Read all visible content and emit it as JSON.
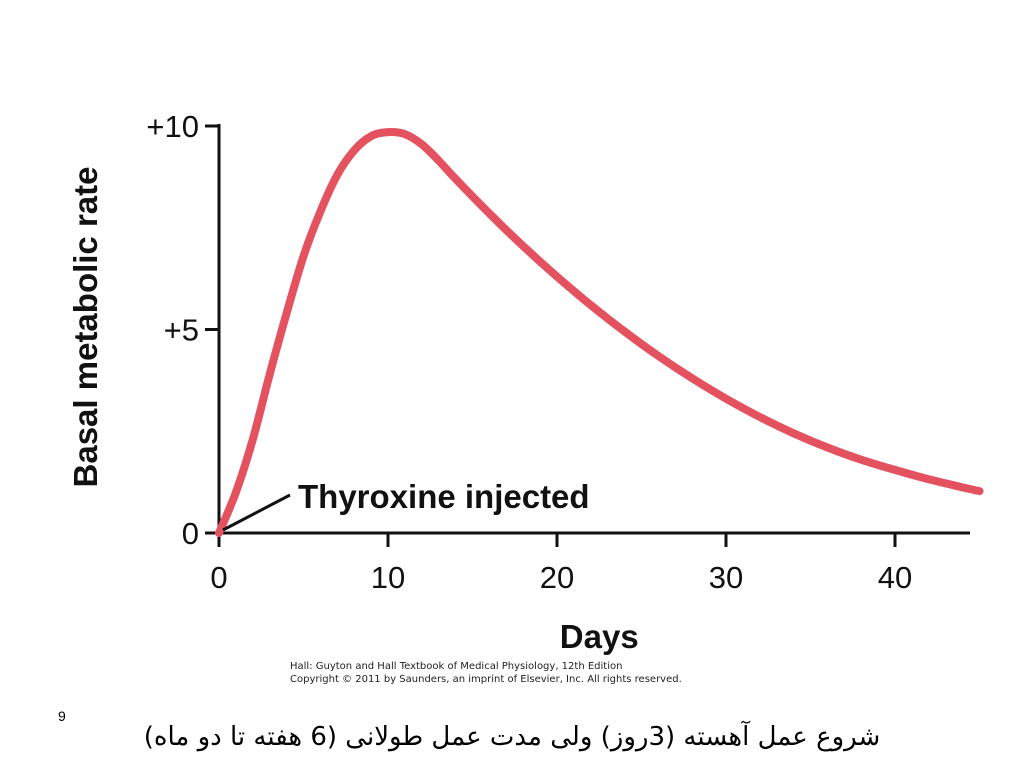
{
  "chart_data": {
    "type": "line",
    "xlabel": "Days",
    "ylabel": "Basal metabolic rate",
    "xlim": [
      0,
      45
    ],
    "ylim": [
      0,
      10
    ],
    "x_ticks": [
      0,
      10,
      20,
      30,
      40
    ],
    "x_tick_labels": [
      "0",
      "10",
      "20",
      "30",
      "40"
    ],
    "y_ticks": [
      0,
      5,
      10
    ],
    "y_tick_labels": [
      "0",
      "+5",
      "+10"
    ],
    "grid": false,
    "series": [
      {
        "color": "#e4525f",
        "points": [
          [
            0,
            0
          ],
          [
            1,
            1.0
          ],
          [
            2,
            2.3
          ],
          [
            3,
            3.9
          ],
          [
            4,
            5.4
          ],
          [
            5,
            6.8
          ],
          [
            6,
            7.9
          ],
          [
            7,
            8.8
          ],
          [
            8,
            9.4
          ],
          [
            9,
            9.75
          ],
          [
            10,
            9.85
          ],
          [
            11,
            9.8
          ],
          [
            12,
            9.55
          ],
          [
            13,
            9.15
          ],
          [
            14,
            8.7
          ],
          [
            16,
            7.85
          ],
          [
            18,
            7.05
          ],
          [
            20,
            6.3
          ],
          [
            22,
            5.6
          ],
          [
            24,
            4.95
          ],
          [
            26,
            4.35
          ],
          [
            28,
            3.8
          ],
          [
            30,
            3.3
          ],
          [
            32,
            2.85
          ],
          [
            34,
            2.45
          ],
          [
            36,
            2.1
          ],
          [
            38,
            1.8
          ],
          [
            40,
            1.55
          ],
          [
            42,
            1.32
          ],
          [
            44,
            1.12
          ],
          [
            45,
            1.03
          ]
        ]
      }
    ],
    "annotations": [
      {
        "text": "Thyroxine injected",
        "x": 0,
        "y": 0
      }
    ]
  },
  "footer": {
    "credit_line1": "Hall: Guyton and Hall Textbook of Medical Physiology, 12th Edition",
    "credit_line2": "Copyright © 2011 by Saunders, an imprint of Elsevier, Inc. All rights reserved.",
    "page_number": "9",
    "caption": "شروع عمل آهسته (3روز) ولی مدت عمل طولانی (6 هفته تا دو ماه)"
  }
}
